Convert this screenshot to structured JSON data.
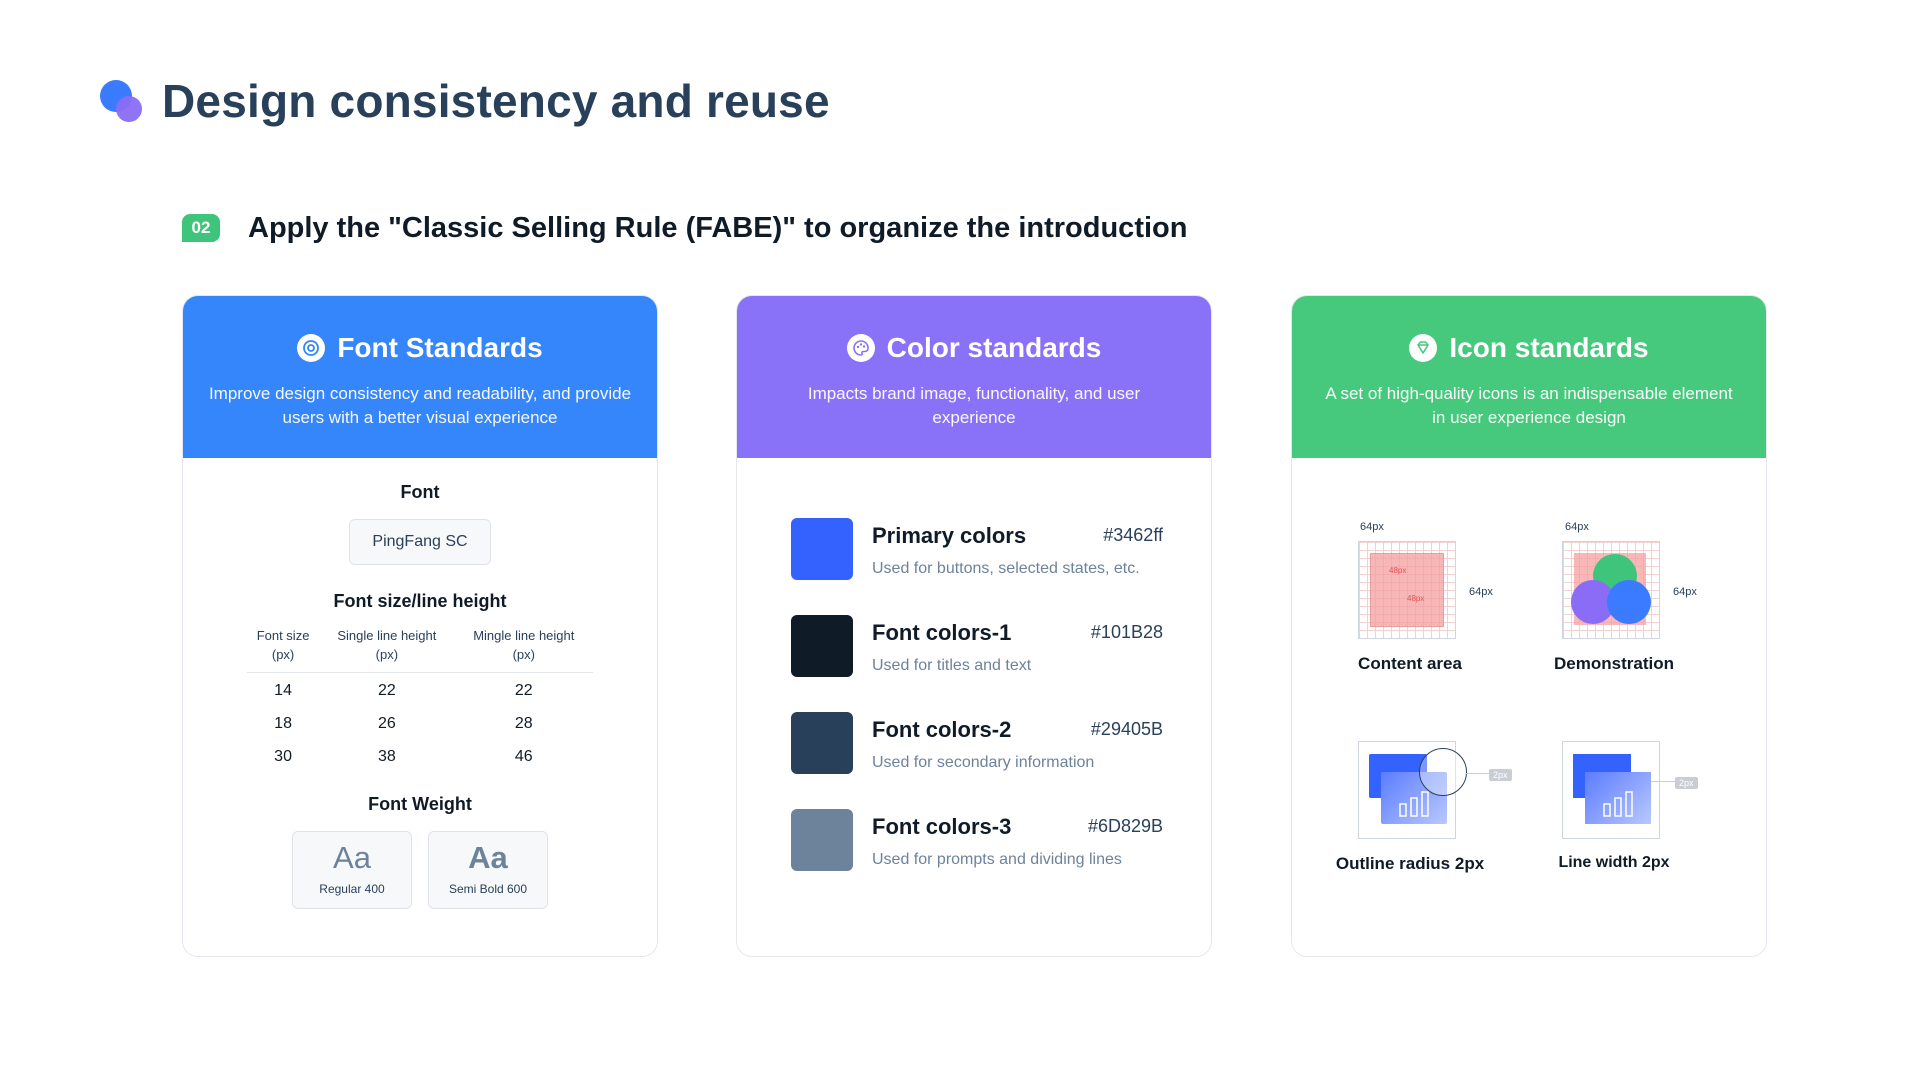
{
  "page": {
    "title": "Design consistency and reuse"
  },
  "section": {
    "badge": "02",
    "title": "Apply the \"Classic Selling Rule (FABE)\" to organize the introduction"
  },
  "cards": {
    "font": {
      "title": "Font Standards",
      "description": "Improve design consistency and readability, and provide users with a better visual experience",
      "header_color": "#3585fb",
      "font_heading": "Font",
      "font_family": "PingFang SC",
      "size_heading": "Font size/line height",
      "table": {
        "headers": [
          "Font size\n(px)",
          "Single line height\n(px)",
          "Mingle line height\n(px)"
        ],
        "rows": [
          [
            "14",
            "22",
            "22"
          ],
          [
            "18",
            "26",
            "28"
          ],
          [
            "30",
            "38",
            "46"
          ]
        ]
      },
      "weight_heading": "Font Weight",
      "weights": [
        {
          "sample": "Aa",
          "label": "Regular 400"
        },
        {
          "sample": "Aa",
          "label": "Semi Bold 600"
        }
      ]
    },
    "color": {
      "title": "Color standards",
      "description": "Impacts brand image, functionality, and user experience",
      "header_color": "#8a72f8",
      "items": [
        {
          "name": "Primary colors",
          "hex": "#3462ff",
          "desc": "Used for buttons, selected states, etc.",
          "swatch": "#3462ff"
        },
        {
          "name": "Font colors-1",
          "hex": "#101B28",
          "desc": "Used for titles and text",
          "swatch": "#101B28"
        },
        {
          "name": "Font colors-2",
          "hex": "#29405B",
          "desc": "Used for secondary information",
          "swatch": "#29405B"
        },
        {
          "name": "Font colors-3",
          "hex": "#6D829B",
          "desc": "Used for prompts and dividing lines",
          "swatch": "#6D829B"
        }
      ]
    },
    "icon": {
      "title": "Icon standards",
      "description": "A set of high-quality icons is an indispensable element in user experience design",
      "header_color": "#47c97d",
      "dim_label": "64px",
      "inner_label": "48px",
      "tag_label": "2px",
      "items": [
        "Content area",
        "Demonstration",
        "Outline radius 2px",
        "Line width 2px"
      ]
    }
  }
}
